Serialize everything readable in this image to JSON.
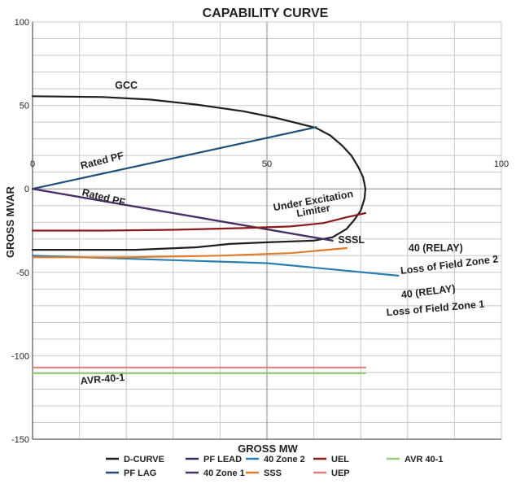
{
  "chart_data": {
    "type": "line",
    "title": "CAPABILITY CURVE",
    "xlabel": "GROSS MW",
    "ylabel": "GROSS MVAR",
    "xlim": [
      0,
      100
    ],
    "ylim": [
      -150,
      100
    ],
    "xticks": [
      0,
      50,
      100
    ],
    "yticks": [
      100,
      50,
      0,
      -50,
      -100,
      -150
    ],
    "grid": true,
    "legend_position": "bottom",
    "series": [
      {
        "name": "D-CURVE",
        "color": "#1f1f1f",
        "x": [
          0,
          15,
          25,
          35,
          45,
          52,
          57,
          60.5,
          63.5,
          66,
          68,
          69.5,
          70.5,
          71,
          70.8,
          70,
          68.5,
          67,
          64,
          60,
          50,
          42,
          35,
          22,
          0
        ],
        "y": [
          55.5,
          55,
          53.5,
          50.5,
          46.5,
          42.5,
          39,
          36.5,
          32,
          26,
          20,
          13,
          7,
          0,
          -6,
          -13,
          -19,
          -24,
          -29,
          -31,
          -32,
          -33,
          -35,
          -36.5,
          -36.5
        ]
      },
      {
        "name": "PF LAG",
        "color": "#1f4e79",
        "x": [
          0,
          60.5
        ],
        "y": [
          0,
          37
        ]
      },
      {
        "name": "PF LEAD",
        "color": "#3b2b5e",
        "x": [
          0,
          64
        ],
        "y": [
          0,
          -31
        ]
      },
      {
        "name": "40 Zone 1",
        "color": "#4b2e68",
        "x": [
          0,
          64
        ],
        "y": [
          0,
          -31
        ]
      },
      {
        "name": "40 Zone 2",
        "color": "#2b7fb0",
        "x": [
          0,
          50,
          78
        ],
        "y": [
          -40,
          -44.5,
          -52
        ]
      },
      {
        "name": "SSS",
        "color": "#e07b2a",
        "x": [
          0,
          20,
          40,
          55,
          67
        ],
        "y": [
          -41,
          -41,
          -40,
          -38.5,
          -35.5
        ]
      },
      {
        "name": "UEL",
        "color": "#8b1a1a",
        "x": [
          0,
          15,
          30,
          45,
          55,
          62,
          67,
          71
        ],
        "y": [
          -25,
          -25,
          -24.5,
          -23.5,
          -22.5,
          -20.5,
          -17,
          -14.5
        ]
      },
      {
        "name": "UEP",
        "color": "#e08080",
        "x": [
          0,
          71
        ],
        "y": [
          -107,
          -107
        ]
      },
      {
        "name": "AVR 40-1",
        "color": "#9cc97a",
        "x": [
          0,
          71
        ],
        "y": [
          -110.5,
          -110.5
        ]
      }
    ],
    "annotations": [
      {
        "text": "GCC",
        "x": 20,
        "y": 60
      },
      {
        "text": "Rated PF",
        "x": 15,
        "y": 15
      },
      {
        "text": "Rated PF",
        "x": 15,
        "y": -7
      },
      {
        "text": "Under Excitation",
        "x": 60,
        "y": -9
      },
      {
        "text": "Limiter",
        "x": 60,
        "y": -15
      },
      {
        "text": "SSSL",
        "x": 68,
        "y": -32.5
      },
      {
        "text": "40 (RELAY)",
        "x": 86,
        "y": -37.5
      },
      {
        "text": "Loss of Field Zone 2",
        "x": 89,
        "y": -47.5
      },
      {
        "text": "40 (RELAY)",
        "x": 84.5,
        "y": -63.5
      },
      {
        "text": "Loss of Field Zone 1",
        "x": 86,
        "y": -73.5
      },
      {
        "text": "AVR-40-1",
        "x": 15,
        "y": -116
      }
    ]
  }
}
